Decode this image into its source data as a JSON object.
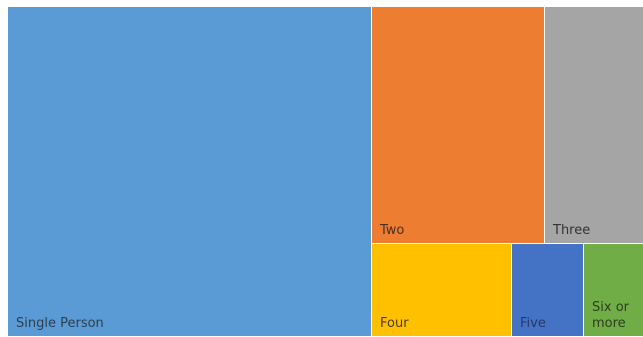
{
  "chart_data": {
    "type": "treemap",
    "title": "",
    "items": [
      {
        "label": "Single Person",
        "color": "#5b9bd5",
        "label_color": "#2f3e4e"
      },
      {
        "label": "Two",
        "color": "#ed7d31",
        "label_color": "#4a3020"
      },
      {
        "label": "Three",
        "color": "#a5a5a5",
        "label_color": "#333333"
      },
      {
        "label": "Four",
        "color": "#ffc000",
        "label_color": "#4a3c10"
      },
      {
        "label": "Five",
        "color": "#4472c4",
        "label_color": "#26386b"
      },
      {
        "label": "Six or more",
        "label_lines": [
          "Six or",
          "more"
        ],
        "color": "#70ad47",
        "label_color": "#2b3f1c"
      }
    ]
  }
}
